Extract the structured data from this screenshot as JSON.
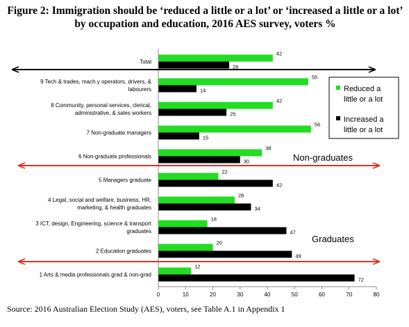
{
  "title": "Figure 2: Immigration should be ‘reduced a little or a lot’ or ‘increased a little or a lot’ by occupation and education, 2016 AES survey, voters %",
  "source": "Source: 2016 Australian Election Study (AES), voters, see Table A.1 in Appendix 1",
  "annotations": {
    "non_graduates": "Non-graduates",
    "graduates": "Graduates"
  },
  "colors": {
    "reduced": "#22dd22",
    "increased": "#000000",
    "arrow_red": "#e03020",
    "arrow_black": "#000000"
  },
  "chart_data": {
    "type": "bar",
    "orientation": "horizontal",
    "categories": [
      [
        "Total"
      ],
      [
        "9 Tech & trades, mach.y operators, drivers, &",
        "labourers"
      ],
      [
        "8 Community, personal services, clerical,",
        "administrative, & sales workers"
      ],
      [
        "7 Non-graduate managers"
      ],
      [
        "6 Non-graduate professionals"
      ],
      [
        "5 Managers graduate"
      ],
      [
        "4 Legal, social and welfare, business, HR,",
        "marketing, & health graduates"
      ],
      [
        "3 ICT, design, Engineering, science & transport",
        "graduates"
      ],
      [
        "2 Education graduates"
      ],
      [
        "1 Arts & media professionals grad & non-grad"
      ]
    ],
    "series": [
      {
        "name": "Reduced a little or a lot",
        "legend_lines": [
          "Reduced a",
          "little or a lot"
        ],
        "values": [
          42,
          55,
          42,
          56,
          38,
          22,
          28,
          18,
          20,
          12
        ]
      },
      {
        "name": "Increased a little or a lot",
        "legend_lines": [
          "Increased a",
          "little or a lot"
        ],
        "values": [
          26,
          14,
          25,
          15,
          30,
          42,
          34,
          47,
          49,
          72
        ]
      }
    ],
    "xlim": [
      0,
      80
    ],
    "xticks": [
      0,
      10,
      20,
      30,
      40,
      50,
      60,
      70,
      80
    ],
    "grid": false,
    "legend_position": "right"
  }
}
